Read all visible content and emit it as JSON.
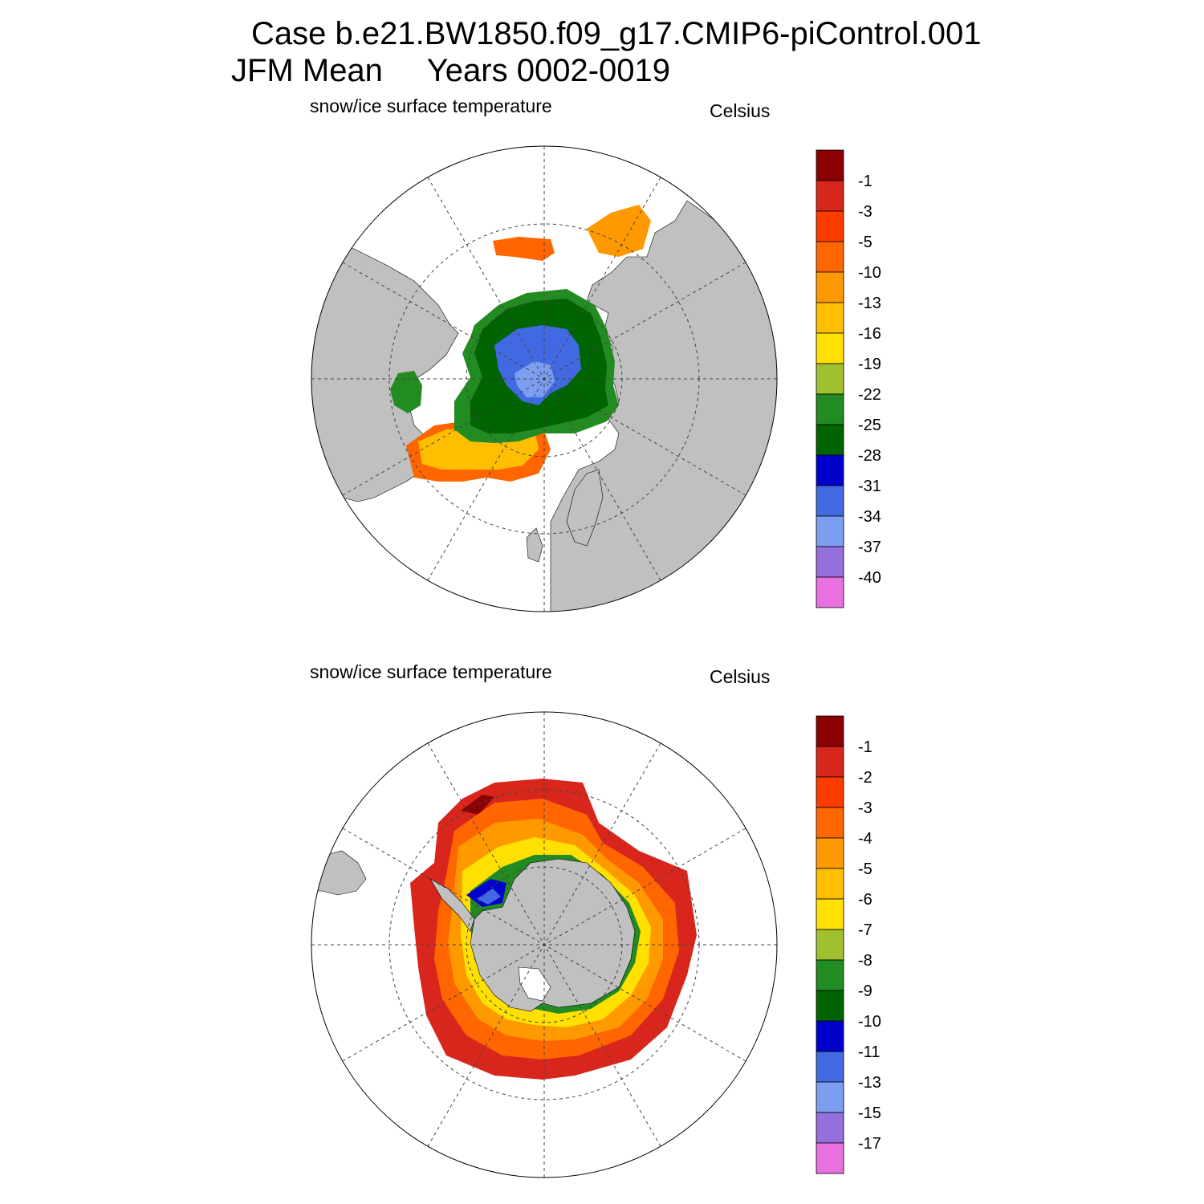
{
  "header": {
    "line1": "Case b.e21.BW1850.f09_g17.CMIP6-piControl.001",
    "line2": "JFM Mean     Years 0002-0019"
  },
  "panels": [
    {
      "hemisphere": "north",
      "variable_label": "snow/ice surface temperature",
      "units_label": "Celsius",
      "colorbar": {
        "labels": [
          "-1",
          "-3",
          "-5",
          "-10",
          "-13",
          "-16",
          "-19",
          "-22",
          "-25",
          "-28",
          "-31",
          "-34",
          "-37",
          "-40"
        ],
        "colors": [
          "#8b0000",
          "#d9261c",
          "#ff3b00",
          "#ff6600",
          "#ff9900",
          "#ffbf00",
          "#ffe000",
          "#a0c030",
          "#228b22",
          "#006400",
          "#0000cd",
          "#4169e1",
          "#7b9ef0",
          "#9370db",
          "#e870e0"
        ]
      }
    },
    {
      "hemisphere": "south",
      "variable_label": "snow/ice surface temperature",
      "units_label": "Celsius",
      "colorbar": {
        "labels": [
          "-1",
          "-2",
          "-3",
          "-4",
          "-5",
          "-6",
          "-7",
          "-8",
          "-9",
          "-10",
          "-11",
          "-13",
          "-15",
          "-17"
        ],
        "colors": [
          "#8b0000",
          "#d9261c",
          "#ff3b00",
          "#ff6600",
          "#ff9900",
          "#ffbf00",
          "#ffe000",
          "#a0c030",
          "#228b22",
          "#006400",
          "#0000cd",
          "#4169e1",
          "#7b9ef0",
          "#9370db",
          "#e870e0"
        ]
      }
    }
  ],
  "map_colors": {
    "land": "#c0c0c0",
    "ocean": "#ffffff",
    "outline": "#000000"
  }
}
